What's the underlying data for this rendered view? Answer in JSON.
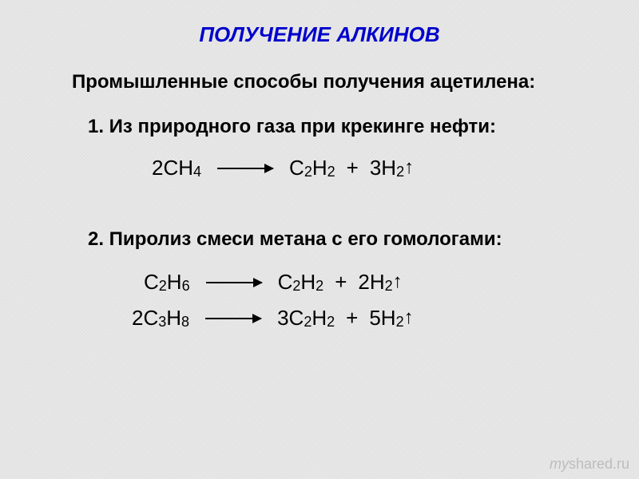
{
  "slide": {
    "title": "ПОЛУЧЕНИЕ АЛКИНОВ",
    "subtitle": "Промышленные способы получения ацетилена:",
    "method1": {
      "heading": "1.  Из природного газа при крекинге нефти:",
      "equation": {
        "reactant_coeff": "2",
        "reactant": "CH",
        "reactant_sub": "4",
        "product1_c": "C",
        "product1_csub": "2",
        "product1_h": "H",
        "product1_hsub": "2",
        "plus": "+",
        "product2_coeff": "3",
        "product2": "H",
        "product2_sub": "2",
        "gas_arrow": "↑"
      }
    },
    "method2": {
      "heading": "2.  Пиролиз смеси метана с его гомологами:",
      "equation1": {
        "reactant_c": "C",
        "reactant_csub": "2",
        "reactant_h": "H",
        "reactant_hsub": "6",
        "product1_c": "C",
        "product1_csub": "2",
        "product1_h": "H",
        "product1_hsub": "2",
        "plus": "+",
        "product2_coeff": "2",
        "product2": "H",
        "product2_sub": "2",
        "gas_arrow": "↑"
      },
      "equation2": {
        "reactant_coeff": "2",
        "reactant_c": "C",
        "reactant_csub": "3",
        "reactant_h": "H",
        "reactant_hsub": "8",
        "product1_coeff": "3",
        "product1_c": "C",
        "product1_csub": "2",
        "product1_h": "H",
        "product1_hsub": "2",
        "plus": "+",
        "product2_coeff": "5",
        "product2": "H",
        "product2_sub": "2",
        "gas_arrow": "↑"
      }
    }
  },
  "watermark": {
    "prefix": "my",
    "text": "shared.ru"
  },
  "colors": {
    "title": "#0000cc",
    "text": "#000000",
    "background": "#e8e8e8",
    "watermark": "rgba(0,0,0,0.18)"
  },
  "typography": {
    "title_size": 26,
    "body_size": 24,
    "equation_size": 26,
    "sub_size": 18,
    "font_family": "Arial"
  }
}
